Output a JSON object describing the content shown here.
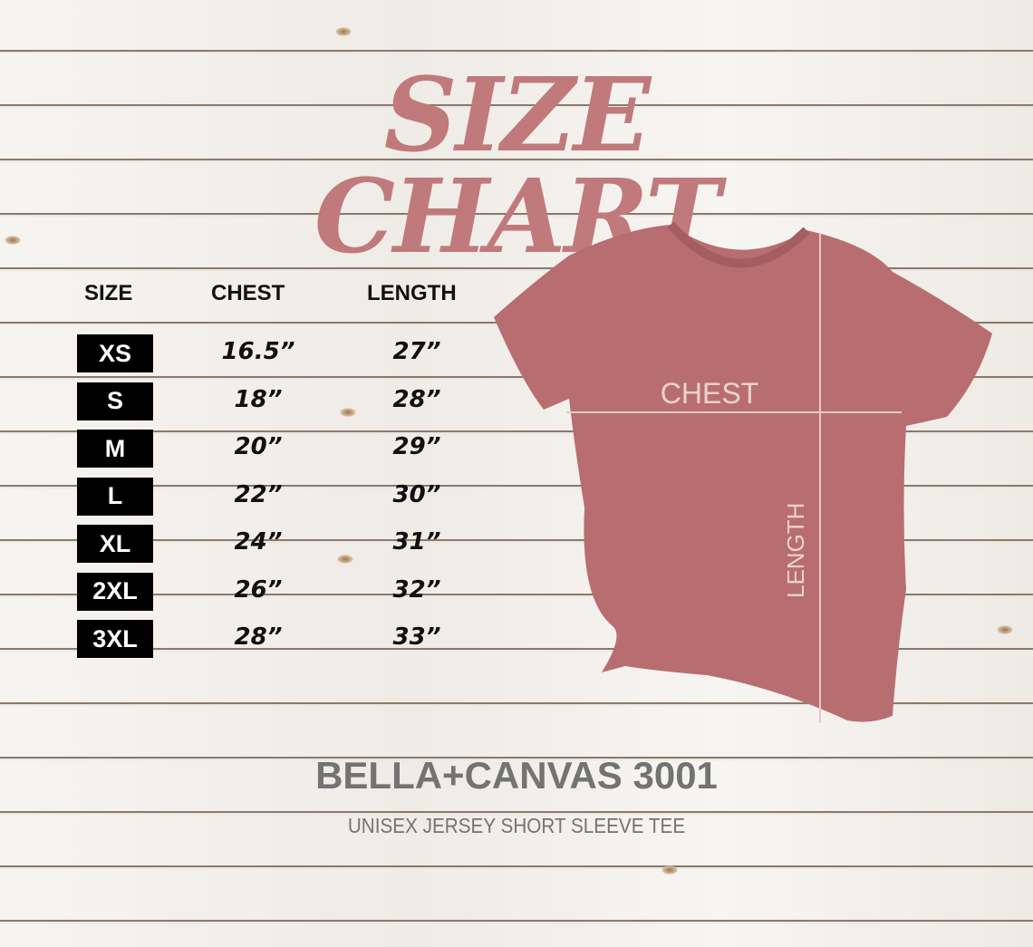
{
  "title": "SIZE CHART",
  "table": {
    "headers": [
      "SIZE",
      "CHEST",
      "LENGTH"
    ],
    "rows": [
      {
        "size": "XS",
        "chest": "16.5”",
        "length": "27”"
      },
      {
        "size": "S",
        "chest": "18”",
        "length": "28”"
      },
      {
        "size": "M",
        "chest": "20”",
        "length": "29”"
      },
      {
        "size": "L",
        "chest": "22”",
        "length": "30”"
      },
      {
        "size": "XL",
        "chest": "24”",
        "length": "31”"
      },
      {
        "size": "2XL",
        "chest": "26”",
        "length": "32”"
      },
      {
        "size": "3XL",
        "chest": "28”",
        "length": "33”"
      }
    ]
  },
  "diagram": {
    "chest_label": "CHEST",
    "length_label": "LENGTH",
    "shirt_color": "#b86e70"
  },
  "brand": {
    "name": "BELLA+CANVAS 3001",
    "subtitle": "UNISEX JERSEY SHORT SLEEVE TEE"
  },
  "colors": {
    "title": "#c07a7c",
    "badge": "#000000",
    "brand_text": "#737373"
  }
}
